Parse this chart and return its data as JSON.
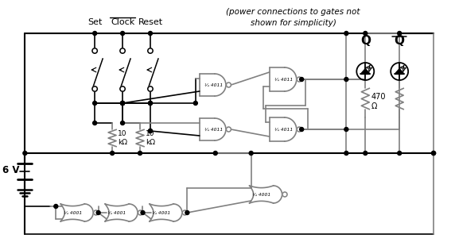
{
  "bg": "#ffffff",
  "gc": "#808080",
  "bk": "#000000",
  "annotation": "(power connections to gates not\nshown for simplicity)",
  "lbl_set": "Set",
  "lbl_clock": "Clock",
  "lbl_reset": "Reset",
  "lbl_Q": "Q",
  "lbl_Qbar": "Q",
  "lbl_6V": "6 V",
  "lbl_10k": "10\nkΩ",
  "lbl_470": "470\nΩ",
  "lbl_4011": "¼ 4011",
  "lbl_4001": "¼ 4001"
}
